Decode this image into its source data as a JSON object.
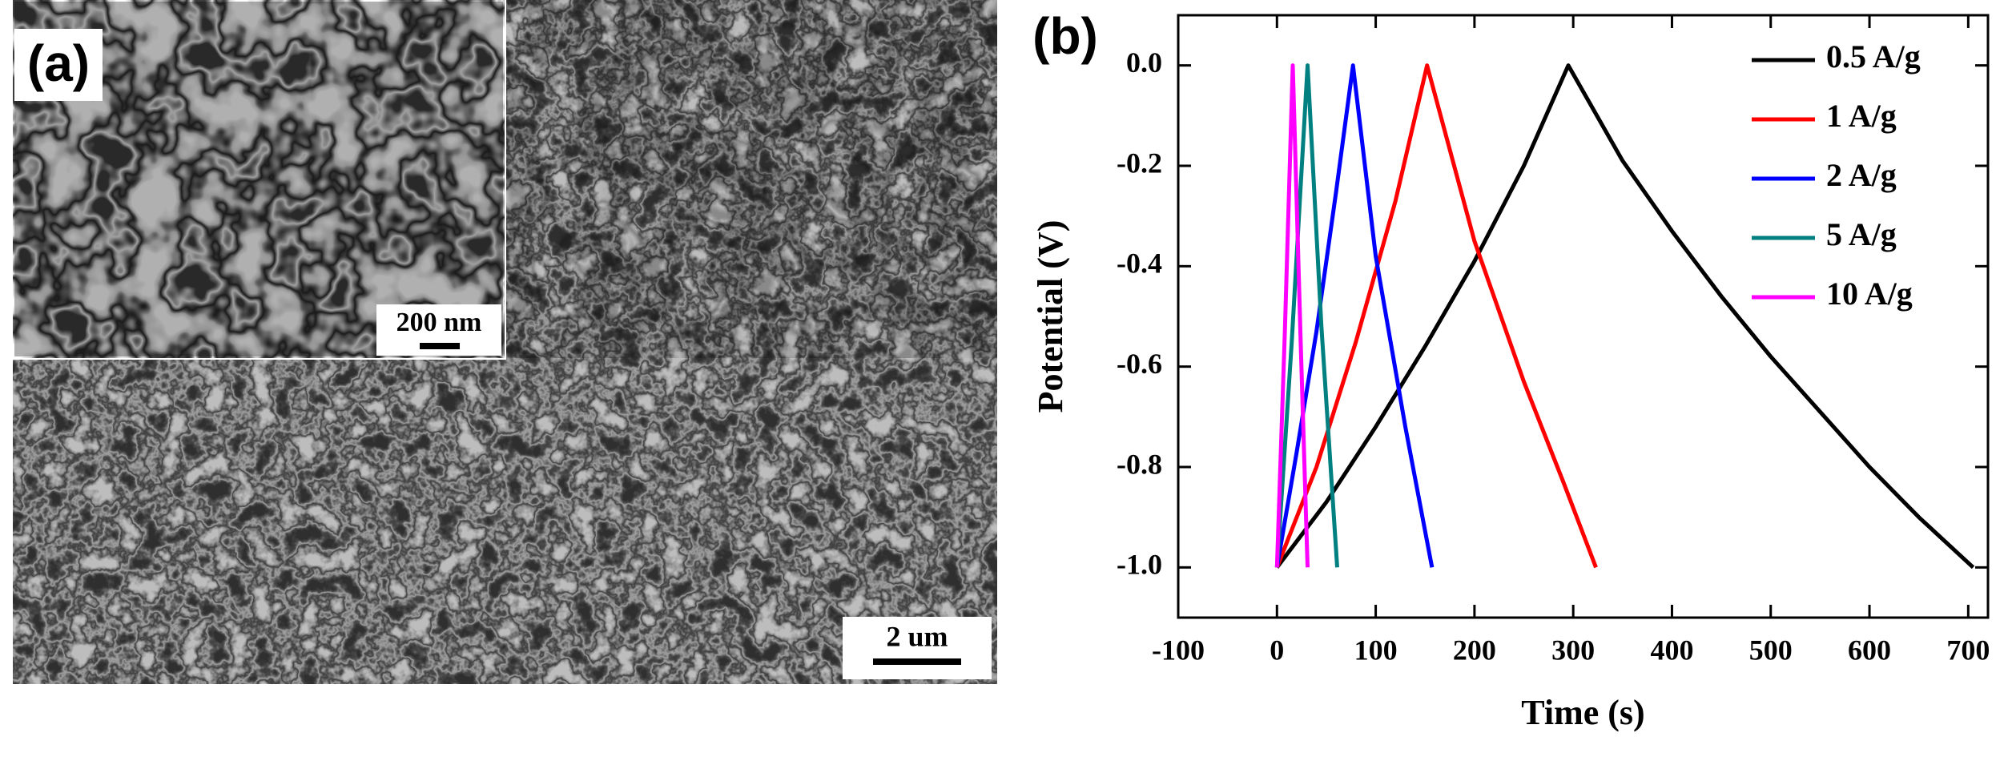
{
  "panel_a": {
    "label": "(a)",
    "inset_scale": "200 nm",
    "scale": "2 um"
  },
  "chart_data": {
    "type": "line",
    "panel_label": "(b)",
    "x_label": "Time (s)",
    "y_label": "Potential (V)",
    "xlim": [
      -100,
      720
    ],
    "ylim": [
      -1.1,
      0.1
    ],
    "xticks": [
      -100,
      0,
      100,
      200,
      300,
      400,
      500,
      600,
      700
    ],
    "yticks": [
      {
        "value": -1.0,
        "label": "-1.0"
      },
      {
        "value": -0.8,
        "label": "-0.8"
      },
      {
        "value": -0.6,
        "label": "-0.6"
      },
      {
        "value": -0.4,
        "label": "-0.4"
      },
      {
        "value": -0.2,
        "label": "-0.2"
      },
      {
        "value": 0.0,
        "label": "0.0"
      }
    ],
    "legend": "top-right",
    "series": [
      {
        "name": "0.5 A/g",
        "color": "#000000",
        "x": [
          0,
          50,
          100,
          150,
          200,
          250,
          295,
          350,
          400,
          450,
          500,
          550,
          600,
          650,
          705
        ],
        "values": [
          -1,
          -0.87,
          -0.72,
          -0.56,
          -0.39,
          -0.2,
          0,
          -0.19,
          -0.33,
          -0.46,
          -0.58,
          -0.69,
          -0.8,
          -0.9,
          -1
        ]
      },
      {
        "name": "1 A/g",
        "color": "#ff0000",
        "x": [
          0,
          40,
          80,
          120,
          152,
          200,
          250,
          290,
          323
        ],
        "values": [
          -1,
          -0.8,
          -0.55,
          -0.27,
          0,
          -0.35,
          -0.63,
          -0.83,
          -1
        ]
      },
      {
        "name": "2 A/g",
        "color": "#0000ff",
        "x": [
          0,
          20,
          40,
          60,
          77,
          100,
          130,
          157
        ],
        "values": [
          -1,
          -0.77,
          -0.53,
          -0.25,
          0,
          -0.38,
          -0.72,
          -1
        ]
      },
      {
        "name": "5 A/g",
        "color": "#008080",
        "x": [
          0,
          15,
          31,
          45,
          61
        ],
        "values": [
          -1,
          -0.55,
          0,
          -0.52,
          -1
        ]
      },
      {
        "name": "10 A/g",
        "color": "#ff00ff",
        "x": [
          0,
          8,
          16,
          24,
          31
        ],
        "values": [
          -1,
          -0.53,
          0,
          -0.55,
          -1
        ]
      }
    ]
  }
}
